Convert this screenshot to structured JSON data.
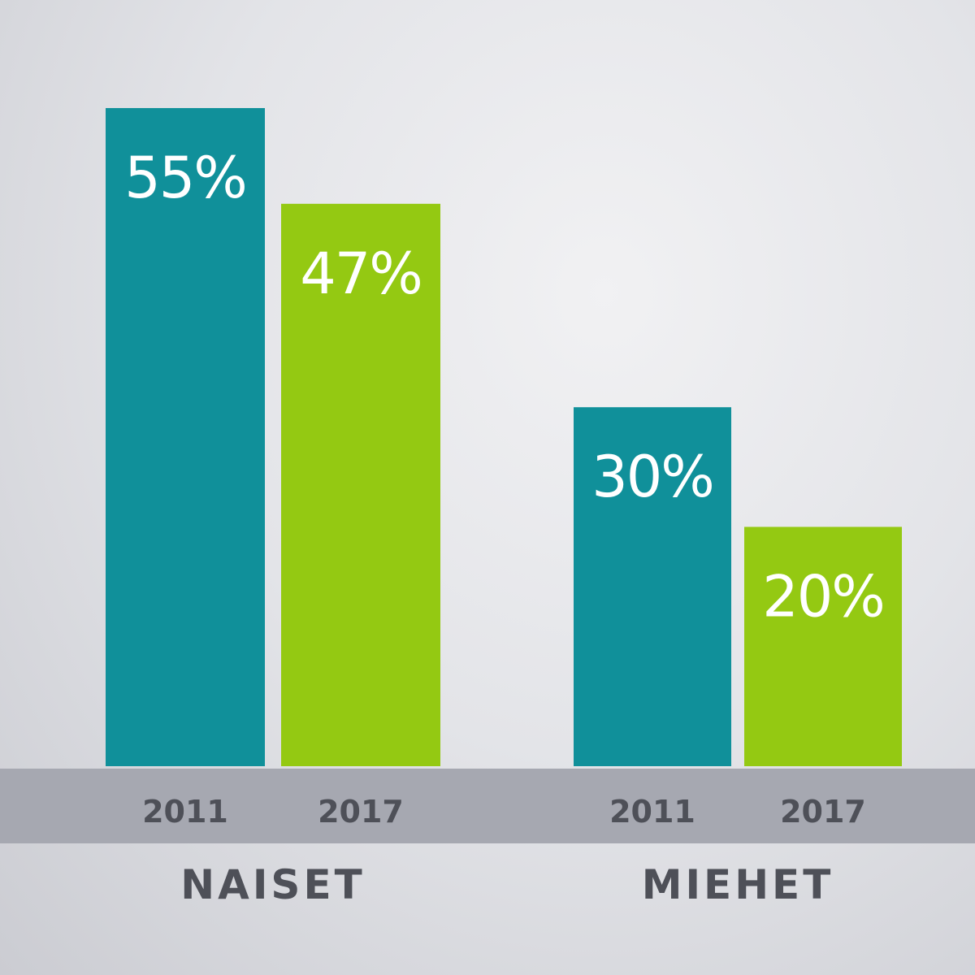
{
  "chart_data": {
    "type": "bar",
    "title": "",
    "xlabel": "",
    "ylabel": "",
    "groups": [
      "NAISET",
      "MIEHET"
    ],
    "categories": [
      "2011",
      "2017"
    ],
    "series": [
      {
        "name": "2011",
        "color": "#10909a",
        "values": [
          55,
          30
        ]
      },
      {
        "name": "2017",
        "color": "#94c912",
        "values": [
          47,
          20
        ]
      }
    ],
    "value_labels": [
      [
        "55%",
        "47%"
      ],
      [
        "30%",
        "20%"
      ]
    ],
    "ylim": [
      0,
      70
    ],
    "grid": false,
    "legend": "none"
  }
}
